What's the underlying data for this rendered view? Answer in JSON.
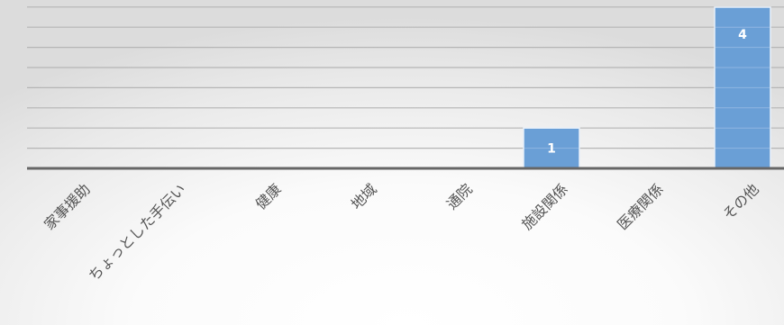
{
  "chart_data": {
    "type": "bar",
    "categories": [
      "家事援助",
      "ちょっとした手伝い",
      "健康",
      "地域",
      "通院",
      "施設関係",
      "医療関係",
      "その他"
    ],
    "values": [
      0,
      0,
      0,
      0,
      0,
      1,
      0,
      4
    ],
    "data_labels": [
      "",
      "",
      "",
      "",
      "",
      "1",
      "",
      "4"
    ],
    "ylim": [
      0,
      4
    ],
    "grid": true,
    "legend": "none",
    "colors": {
      "bar": "#6a9fd6",
      "bar_edge": "#e8f0fa",
      "grid": "#b5b5b5",
      "axis": "#666666",
      "label": "#555555",
      "data_label": "#ffffff"
    }
  }
}
